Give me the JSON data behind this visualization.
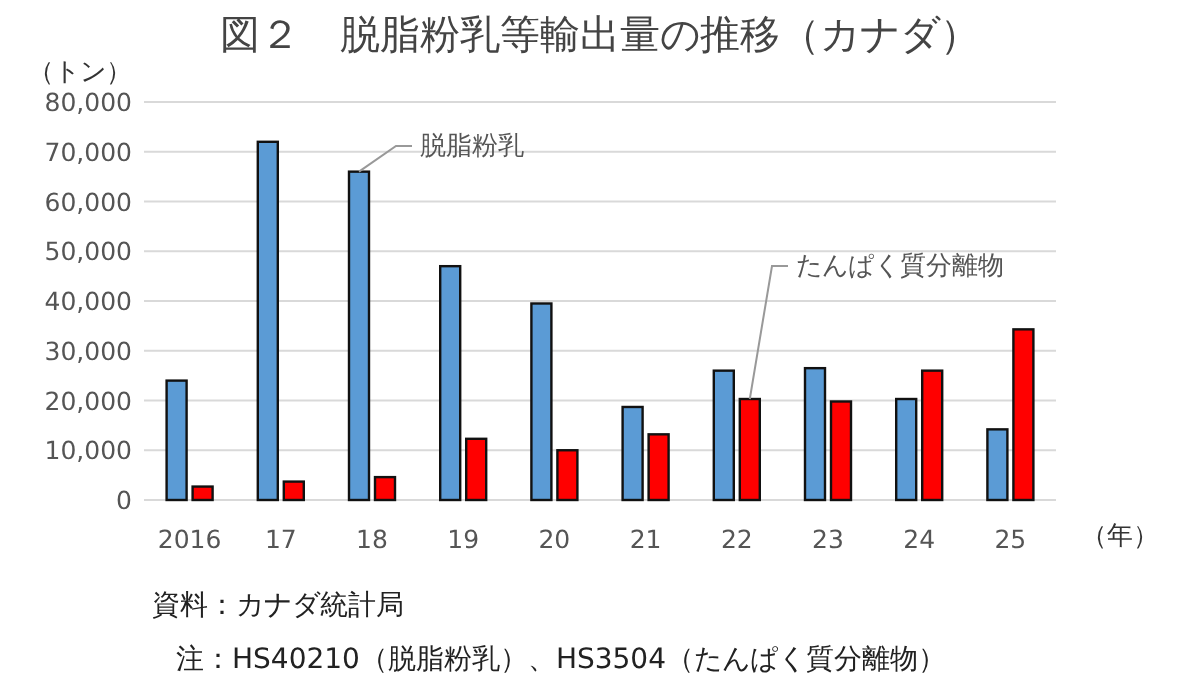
{
  "chart_data": {
    "type": "bar",
    "title": "図２　脱脂粉乳等輸出量の推移（カナダ）",
    "ylabel": "（トン）",
    "xlabel": "（年）",
    "categories": [
      "2016",
      "17",
      "18",
      "19",
      "20",
      "21",
      "22",
      "23",
      "24",
      "25"
    ],
    "series": [
      {
        "name": "脱脂粉乳",
        "color": "#5b9bd5",
        "values": [
          24000,
          72000,
          66000,
          47000,
          39500,
          18700,
          26000,
          26500,
          20300,
          14200
        ]
      },
      {
        "name": "たんぱく質分離物",
        "color": "#ff0000",
        "values": [
          2700,
          3700,
          4600,
          12300,
          10000,
          13200,
          20300,
          19800,
          26000,
          34300
        ]
      }
    ],
    "ylim": [
      0,
      80000
    ],
    "yticks": [
      {
        "value": 0,
        "label": "0"
      },
      {
        "value": 10000,
        "label": "10,000"
      },
      {
        "value": 20000,
        "label": "20,000"
      },
      {
        "value": 30000,
        "label": "30,000"
      },
      {
        "value": 40000,
        "label": "40,000"
      },
      {
        "value": 50000,
        "label": "50,000"
      },
      {
        "value": 60000,
        "label": "60,000"
      },
      {
        "value": 70000,
        "label": "70,000"
      },
      {
        "value": 80000,
        "label": "80,000"
      }
    ],
    "grid": "y",
    "legend": false,
    "annotations": [
      "資料：カナダ統計局",
      "注：HS40210（脱脂粉乳）、HS3504（たんぱく質分離物）"
    ]
  }
}
